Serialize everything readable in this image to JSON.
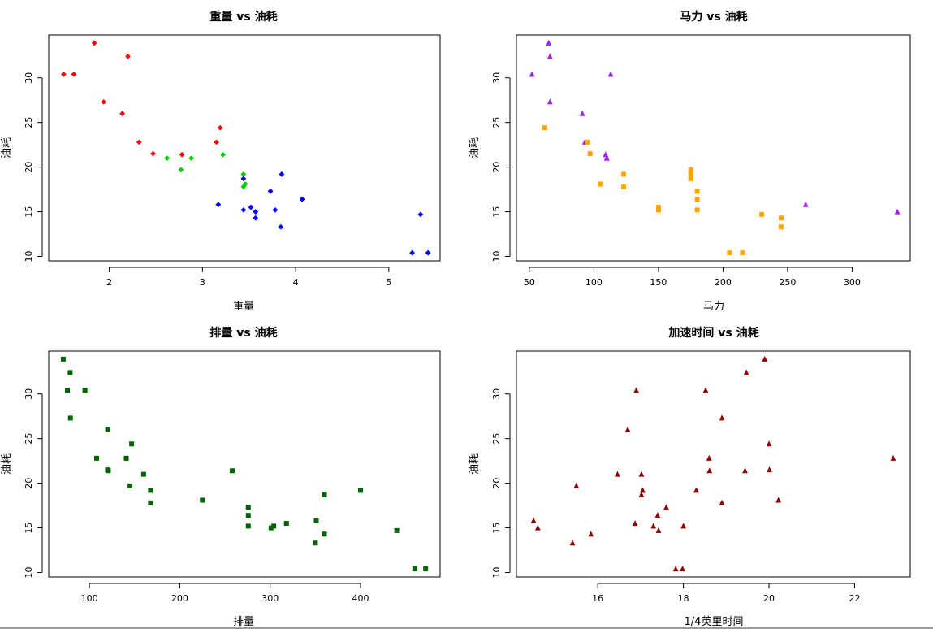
{
  "chart_data": [
    {
      "type": "scatter",
      "title": "重量 vs 油耗",
      "xlabel": "重量",
      "ylabel": "油耗",
      "xlim": [
        1.35,
        5.55
      ],
      "ylim": [
        9.5,
        34.8
      ],
      "xticks": [
        2,
        3,
        4,
        5
      ],
      "yticks": [
        10,
        15,
        20,
        25,
        30
      ],
      "marker": "diamond",
      "series": [
        {
          "color": "#ff0000",
          "points": [
            [
              1.51,
              30.4
            ],
            [
              1.62,
              30.4
            ],
            [
              1.84,
              33.9
            ],
            [
              1.94,
              27.3
            ],
            [
              2.14,
              26.0
            ],
            [
              2.2,
              32.4
            ],
            [
              2.32,
              22.8
            ],
            [
              2.47,
              21.5
            ],
            [
              2.78,
              21.4
            ],
            [
              3.15,
              22.8
            ],
            [
              3.19,
              24.4
            ]
          ]
        },
        {
          "color": "#00cc00",
          "points": [
            [
              2.62,
              21.0
            ],
            [
              2.77,
              19.7
            ],
            [
              2.88,
              21.0
            ],
            [
              3.22,
              21.4
            ],
            [
              3.44,
              19.2
            ],
            [
              3.44,
              17.8
            ],
            [
              3.46,
              18.1
            ]
          ]
        },
        {
          "color": "#0000ff",
          "points": [
            [
              3.17,
              15.8
            ],
            [
              3.44,
              18.7
            ],
            [
              3.44,
              15.2
            ],
            [
              3.52,
              15.5
            ],
            [
              3.57,
              14.3
            ],
            [
              3.57,
              15.0
            ],
            [
              3.73,
              17.3
            ],
            [
              3.78,
              15.2
            ],
            [
              3.84,
              13.3
            ],
            [
              3.85,
              19.2
            ],
            [
              4.07,
              16.4
            ],
            [
              5.25,
              10.4
            ],
            [
              5.34,
              14.7
            ],
            [
              5.42,
              10.4
            ]
          ]
        }
      ]
    },
    {
      "type": "scatter",
      "title": "马力 vs 油耗",
      "xlabel": "马力",
      "ylabel": "油耗",
      "xlim": [
        40,
        345
      ],
      "ylim": [
        9.5,
        34.8
      ],
      "xticks": [
        50,
        100,
        150,
        200,
        250,
        300
      ],
      "yticks": [
        10,
        15,
        20,
        25,
        30
      ],
      "series": [
        {
          "color": "#a020f0",
          "marker": "triangle",
          "points": [
            [
              52,
              30.4
            ],
            [
              65,
              33.9
            ],
            [
              66,
              32.4
            ],
            [
              66,
              27.3
            ],
            [
              91,
              26.0
            ],
            [
              93,
              22.8
            ],
            [
              109,
              21.4
            ],
            [
              110,
              21.0
            ],
            [
              110,
              21.0
            ],
            [
              113,
              30.4
            ],
            [
              175,
              19.7
            ],
            [
              264,
              15.8
            ],
            [
              335,
              15.0
            ]
          ]
        },
        {
          "color": "#ffa500",
          "marker": "square",
          "points": [
            [
              62,
              24.4
            ],
            [
              95,
              22.8
            ],
            [
              97,
              21.5
            ],
            [
              105,
              18.1
            ],
            [
              123,
              19.2
            ],
            [
              123,
              17.8
            ],
            [
              150,
              15.5
            ],
            [
              150,
              15.2
            ],
            [
              175,
              18.7
            ],
            [
              175,
              19.2
            ],
            [
              175,
              19.7
            ],
            [
              180,
              16.4
            ],
            [
              180,
              17.3
            ],
            [
              180,
              15.2
            ],
            [
              205,
              10.4
            ],
            [
              215,
              10.4
            ],
            [
              230,
              14.7
            ],
            [
              245,
              14.3
            ],
            [
              245,
              13.3
            ]
          ]
        }
      ]
    },
    {
      "type": "scatter",
      "title": "排量 vs 油耗",
      "xlabel": "排量",
      "ylabel": "油耗",
      "xlim": [
        55,
        488
      ],
      "ylim": [
        9.5,
        34.8
      ],
      "xticks": [
        100,
        200,
        300,
        400
      ],
      "yticks": [
        10,
        15,
        20,
        25,
        30
      ],
      "series": [
        {
          "color": "#006400",
          "marker": "square",
          "points": [
            [
              71.1,
              33.9
            ],
            [
              75.7,
              30.4
            ],
            [
              78.7,
              32.4
            ],
            [
              79,
              27.3
            ],
            [
              95.1,
              30.4
            ],
            [
              108,
              22.8
            ],
            [
              120.1,
              21.5
            ],
            [
              120.3,
              26.0
            ],
            [
              121,
              21.4
            ],
            [
              140.8,
              22.8
            ],
            [
              146.7,
              24.4
            ],
            [
              145,
              19.7
            ],
            [
              160,
              21.0
            ],
            [
              167.6,
              19.2
            ],
            [
              167.6,
              17.8
            ],
            [
              225,
              18.1
            ],
            [
              258,
              21.4
            ],
            [
              275.8,
              16.4
            ],
            [
              275.8,
              17.3
            ],
            [
              275.8,
              15.2
            ],
            [
              301,
              15.0
            ],
            [
              304,
              15.2
            ],
            [
              318,
              15.5
            ],
            [
              350,
              13.3
            ],
            [
              351,
              15.8
            ],
            [
              360,
              18.7
            ],
            [
              360,
              14.3
            ],
            [
              400,
              19.2
            ],
            [
              440,
              14.7
            ],
            [
              460,
              10.4
            ],
            [
              472,
              10.4
            ]
          ]
        }
      ]
    },
    {
      "type": "scatter",
      "title": "加速时间 vs 油耗",
      "xlabel": "1/4英里时间",
      "ylabel": "油耗",
      "xlim": [
        14.1,
        23.3
      ],
      "ylim": [
        9.5,
        34.8
      ],
      "xticks": [
        16,
        18,
        20,
        22
      ],
      "yticks": [
        10,
        15,
        20,
        25,
        30
      ],
      "series": [
        {
          "color": "#8b0000",
          "marker": "triangle",
          "points": [
            [
              14.5,
              15.8
            ],
            [
              14.6,
              15.0
            ],
            [
              15.41,
              13.3
            ],
            [
              15.5,
              19.7
            ],
            [
              15.84,
              14.3
            ],
            [
              16.46,
              21.0
            ],
            [
              16.7,
              26.0
            ],
            [
              16.87,
              15.5
            ],
            [
              16.9,
              30.4
            ],
            [
              17.02,
              21.0
            ],
            [
              17.02,
              18.7
            ],
            [
              17.05,
              19.2
            ],
            [
              17.3,
              15.2
            ],
            [
              17.4,
              16.4
            ],
            [
              17.42,
              14.7
            ],
            [
              17.6,
              17.3
            ],
            [
              17.82,
              10.4
            ],
            [
              17.98,
              10.4
            ],
            [
              18.0,
              15.2
            ],
            [
              18.3,
              19.2
            ],
            [
              18.52,
              30.4
            ],
            [
              18.6,
              22.8
            ],
            [
              18.61,
              21.4
            ],
            [
              18.9,
              27.3
            ],
            [
              18.9,
              17.8
            ],
            [
              19.44,
              21.4
            ],
            [
              19.47,
              32.4
            ],
            [
              19.9,
              33.9
            ],
            [
              20.0,
              24.4
            ],
            [
              20.01,
              21.5
            ],
            [
              20.22,
              18.1
            ],
            [
              22.9,
              22.8
            ]
          ]
        }
      ]
    }
  ]
}
